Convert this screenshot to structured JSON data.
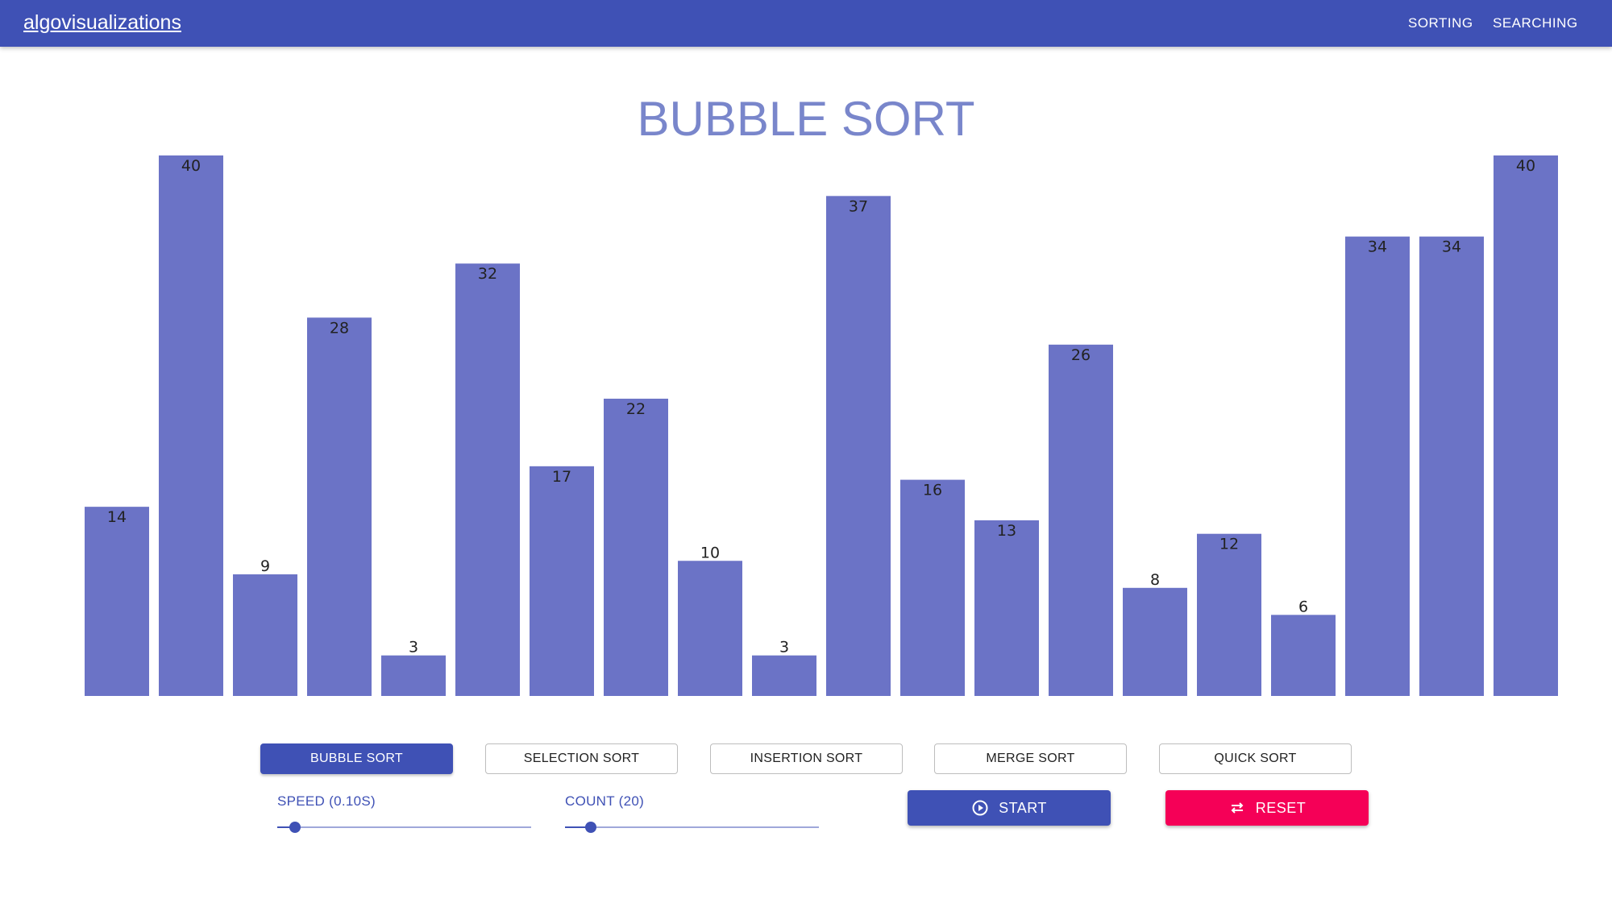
{
  "appbar": {
    "brand": "algovisualizations",
    "nav": [
      "SORTING",
      "SEARCHING"
    ]
  },
  "page": {
    "title": "BUBBLE SORT"
  },
  "chart_data": {
    "type": "bar",
    "values": [
      14,
      40,
      9,
      28,
      3,
      32,
      17,
      22,
      10,
      3,
      37,
      16,
      13,
      26,
      8,
      12,
      6,
      34,
      34,
      40
    ],
    "ylim": [
      0,
      40
    ],
    "bar_color": "#6b73c6"
  },
  "algorithms": [
    {
      "label": "BUBBLE SORT",
      "active": true
    },
    {
      "label": "SELECTION SORT",
      "active": false
    },
    {
      "label": "INSERTION SORT",
      "active": false
    },
    {
      "label": "MERGE SORT",
      "active": false
    },
    {
      "label": "QUICK SORT",
      "active": false
    }
  ],
  "controls": {
    "speed": {
      "label": "SPEED (0.10S)",
      "fraction": 0.07
    },
    "count": {
      "label": "COUNT (20)",
      "fraction": 0.1
    },
    "start_label": "START",
    "reset_label": "RESET",
    "start_icon": "play-circle-icon",
    "reset_icon": "swap-arrows-icon"
  },
  "colors": {
    "primary": "#3f51b5",
    "title": "#7986cb",
    "bar": "#6b73c6",
    "reset": "#f50057",
    "track": "#9fa8da"
  }
}
